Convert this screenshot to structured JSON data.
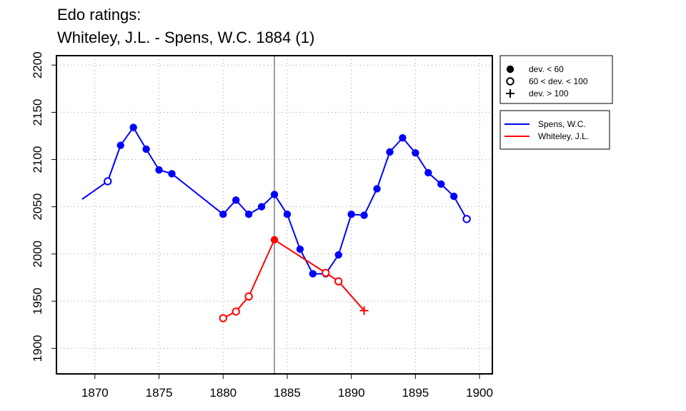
{
  "chart_data": {
    "type": "line",
    "title_lines": [
      "Edo ratings:",
      "Whiteley, J.L. - Spens, W.C. 1884 (1)"
    ],
    "xlabel": "",
    "ylabel": "",
    "xlim": [
      1867,
      1901
    ],
    "ylim": [
      1873,
      2210
    ],
    "x_ticks": [
      1870,
      1875,
      1880,
      1885,
      1890,
      1895,
      1900
    ],
    "y_ticks": [
      1900,
      1950,
      2000,
      2050,
      2100,
      2150,
      2200
    ],
    "grid": true,
    "vline_x": 1884,
    "marker_legend": [
      {
        "marker": "filled",
        "label": "dev. < 60"
      },
      {
        "marker": "open",
        "label": "60 < dev. < 100"
      },
      {
        "marker": "plus",
        "label": "dev. > 100"
      }
    ],
    "series": [
      {
        "name": "Spens, W.C.",
        "color": "#0000ff",
        "points": [
          {
            "x": 1869,
            "y": 2058,
            "m": "none"
          },
          {
            "x": 1871,
            "y": 2077,
            "m": "open"
          },
          {
            "x": 1872,
            "y": 2115,
            "m": "filled"
          },
          {
            "x": 1873,
            "y": 2134,
            "m": "filled"
          },
          {
            "x": 1874,
            "y": 2111,
            "m": "filled"
          },
          {
            "x": 1875,
            "y": 2089,
            "m": "filled"
          },
          {
            "x": 1876,
            "y": 2085,
            "m": "filled"
          },
          {
            "x": 1880,
            "y": 2042,
            "m": "filled"
          },
          {
            "x": 1881,
            "y": 2057,
            "m": "filled"
          },
          {
            "x": 1882,
            "y": 2042,
            "m": "filled"
          },
          {
            "x": 1883,
            "y": 2050,
            "m": "filled"
          },
          {
            "x": 1884,
            "y": 2063,
            "m": "filled"
          },
          {
            "x": 1885,
            "y": 2042,
            "m": "filled"
          },
          {
            "x": 1886,
            "y": 2005,
            "m": "filled"
          },
          {
            "x": 1887,
            "y": 1979,
            "m": "filled"
          },
          {
            "x": 1888,
            "y": 1979,
            "m": "filled"
          },
          {
            "x": 1889,
            "y": 1999,
            "m": "filled"
          },
          {
            "x": 1890,
            "y": 2042,
            "m": "filled"
          },
          {
            "x": 1891,
            "y": 2041,
            "m": "filled"
          },
          {
            "x": 1892,
            "y": 2069,
            "m": "filled"
          },
          {
            "x": 1893,
            "y": 2108,
            "m": "filled"
          },
          {
            "x": 1894,
            "y": 2123,
            "m": "filled"
          },
          {
            "x": 1895,
            "y": 2107,
            "m": "filled"
          },
          {
            "x": 1896,
            "y": 2086,
            "m": "filled"
          },
          {
            "x": 1897,
            "y": 2074,
            "m": "filled"
          },
          {
            "x": 1898,
            "y": 2061,
            "m": "filled"
          },
          {
            "x": 1899,
            "y": 2037,
            "m": "open"
          }
        ]
      },
      {
        "name": "Whiteley, J.L.",
        "color": "#ff0000",
        "points": [
          {
            "x": 1880,
            "y": 1932,
            "m": "open"
          },
          {
            "x": 1881,
            "y": 1939,
            "m": "open"
          },
          {
            "x": 1882,
            "y": 1955,
            "m": "open"
          },
          {
            "x": 1884,
            "y": 2015,
            "m": "filled"
          },
          {
            "x": 1888,
            "y": 1980,
            "m": "open"
          },
          {
            "x": 1889,
            "y": 1971,
            "m": "open"
          },
          {
            "x": 1891,
            "y": 1940,
            "m": "plus"
          }
        ]
      }
    ]
  }
}
